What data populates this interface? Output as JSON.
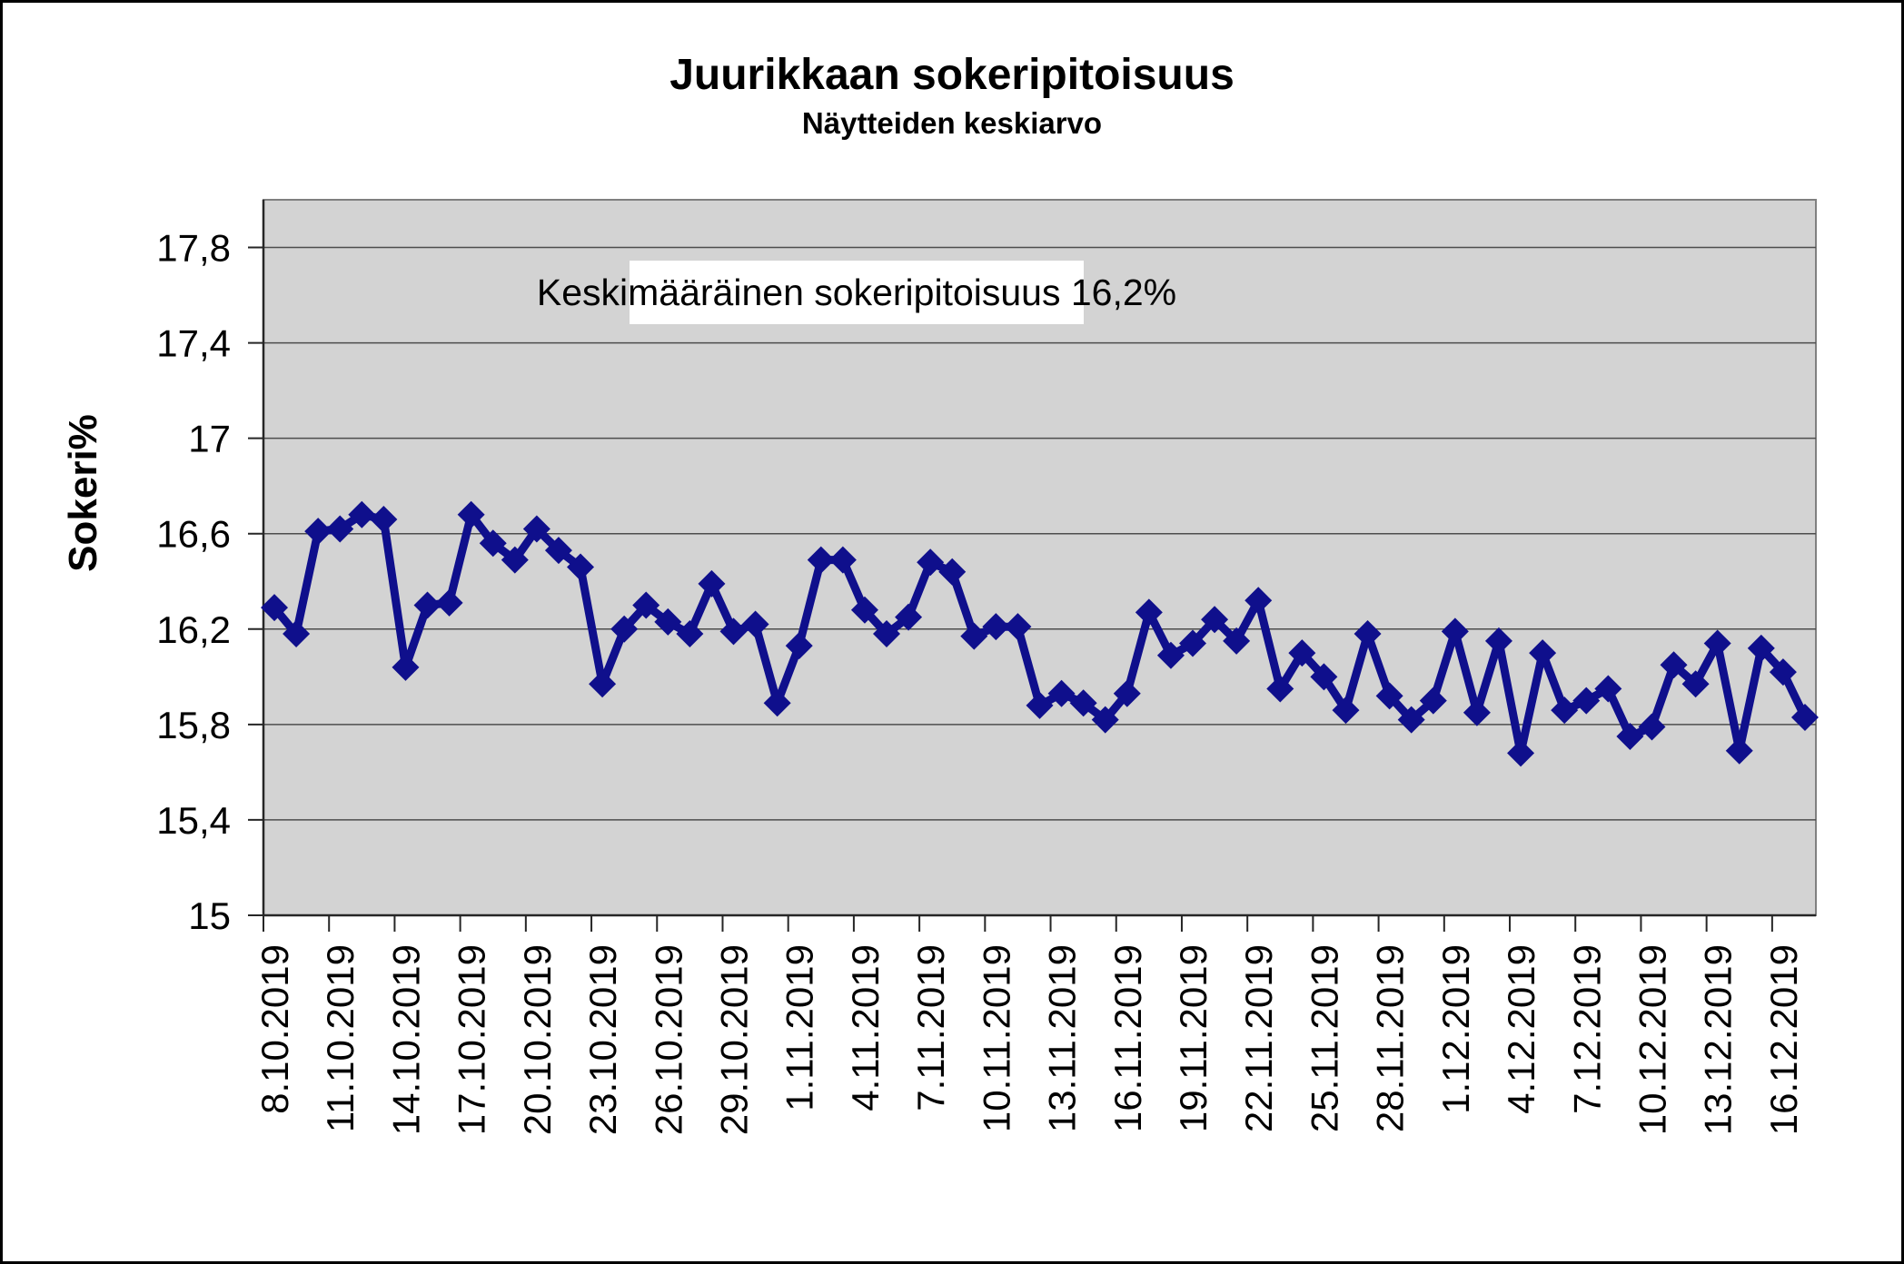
{
  "chart_data": {
    "type": "line",
    "title": "Juurikkaan sokeripitoisuus",
    "subtitle": "Näytteiden keskiarvo",
    "ylabel": "Sokeri%",
    "annotation": "Keskimääräinen sokeripitoisuus 16,2%",
    "legend": "none",
    "grid": true,
    "ylim": [
      15,
      18
    ],
    "line_color": "#0F0F8C",
    "marker": "diamond",
    "plot_bg": "#D3D3D3",
    "grid_color": "#4D4D4D",
    "axis_color": "#262626",
    "plot_border_color": "#808080",
    "y_ticks": [
      {
        "v": 15,
        "label": "15"
      },
      {
        "v": 15.4,
        "label": "15,4"
      },
      {
        "v": 15.8,
        "label": "15,8"
      },
      {
        "v": 16.2,
        "label": "16,2"
      },
      {
        "v": 16.6,
        "label": "16,6"
      },
      {
        "v": 17,
        "label": "17"
      },
      {
        "v": 17.4,
        "label": "17,4"
      },
      {
        "v": 17.8,
        "label": "17,8"
      }
    ],
    "x_tick_interval_days": 3,
    "x_tick_labels": [
      "8.10.2019",
      "11.10.2019",
      "14.10.2019",
      "17.10.2019",
      "20.10.2019",
      "23.10.2019",
      "26.10.2019",
      "29.10.2019",
      "1.11.2019",
      "4.11.2019",
      "7.11.2019",
      "10.11.2019",
      "13.11.2019",
      "16.11.2019",
      "19.11.2019",
      "22.11.2019",
      "25.11.2019",
      "28.11.2019",
      "1.12.2019",
      "4.12.2019",
      "7.12.2019",
      "10.12.2019",
      "13.12.2019",
      "16.12.2019"
    ],
    "x": [
      "8.10.2019",
      "9.10.2019",
      "10.10.2019",
      "11.10.2019",
      "12.10.2019",
      "13.10.2019",
      "14.10.2019",
      "15.10.2019",
      "16.10.2019",
      "17.10.2019",
      "18.10.2019",
      "19.10.2019",
      "20.10.2019",
      "21.10.2019",
      "22.10.2019",
      "23.10.2019",
      "24.10.2019",
      "25.10.2019",
      "26.10.2019",
      "27.10.2019",
      "28.10.2019",
      "29.10.2019",
      "30.10.2019",
      "31.10.2019",
      "1.11.2019",
      "2.11.2019",
      "3.11.2019",
      "4.11.2019",
      "5.11.2019",
      "6.11.2019",
      "7.11.2019",
      "8.11.2019",
      "9.11.2019",
      "10.11.2019",
      "11.11.2019",
      "12.11.2019",
      "13.11.2019",
      "14.11.2019",
      "15.11.2019",
      "16.11.2019",
      "17.11.2019",
      "18.11.2019",
      "19.11.2019",
      "20.11.2019",
      "21.11.2019",
      "22.11.2019",
      "23.11.2019",
      "24.11.2019",
      "25.11.2019",
      "26.11.2019",
      "27.11.2019",
      "28.11.2019",
      "29.11.2019",
      "30.11.2019",
      "1.12.2019",
      "2.12.2019",
      "3.12.2019",
      "4.12.2019",
      "5.12.2019",
      "6.12.2019",
      "7.12.2019",
      "8.12.2019",
      "9.12.2019",
      "10.12.2019",
      "11.12.2019",
      "12.12.2019",
      "13.12.2019",
      "14.12.2019",
      "15.12.2019",
      "16.12.2019",
      "17.12.2019"
    ],
    "values": [
      16.29,
      16.18,
      16.61,
      16.62,
      16.68,
      16.66,
      16.04,
      16.3,
      16.31,
      16.68,
      16.56,
      16.49,
      16.62,
      16.53,
      16.46,
      15.97,
      16.2,
      16.3,
      16.23,
      16.18,
      16.39,
      16.19,
      16.22,
      15.89,
      16.13,
      16.49,
      16.49,
      16.28,
      16.18,
      16.25,
      16.48,
      16.44,
      16.17,
      16.21,
      16.21,
      15.88,
      15.93,
      15.89,
      15.82,
      15.93,
      16.27,
      16.09,
      16.14,
      16.24,
      16.15,
      16.32,
      15.95,
      16.1,
      16.0,
      15.86,
      16.18,
      15.92,
      15.82,
      15.9,
      16.19,
      15.85,
      16.15,
      15.68,
      16.1,
      15.86,
      15.9,
      15.95,
      15.75,
      15.79,
      16.05,
      15.97,
      16.14,
      15.69,
      16.12,
      16.02,
      15.83
    ]
  }
}
